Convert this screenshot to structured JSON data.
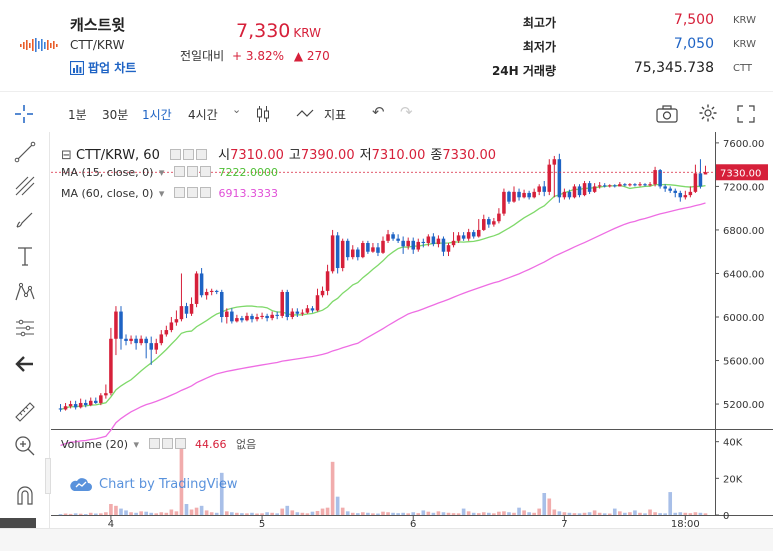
{
  "header": {
    "coin_name": "캐스트윗",
    "pair": "CTT/KRW",
    "popup_label": "팝업 차트",
    "price": "7,330",
    "price_unit": "KRW",
    "change_label": "전일대비",
    "change_pct": "+ 3.82%",
    "change_abs": "▲ 270",
    "stats": [
      {
        "label": "최고가",
        "value": "7,500",
        "unit": "KRW",
        "color": "#d6203a"
      },
      {
        "label": "최저가",
        "value": "7,050",
        "unit": "KRW",
        "color": "#1e63c4"
      },
      {
        "label": "24H 거래량",
        "value": "75,345.738",
        "unit": "CTT",
        "color": "#222222"
      }
    ]
  },
  "toolbar": {
    "intervals": [
      "1분",
      "30분",
      "1시간",
      "4시간"
    ],
    "active_interval": "1시간",
    "indicator_label": "지표"
  },
  "legend": {
    "symbol": "CTT/KRW, 60",
    "ohlc": [
      {
        "k": "시",
        "v": "7310.00"
      },
      {
        "k": "고",
        "v": "7390.00"
      },
      {
        "k": "저",
        "v": "7310.00"
      },
      {
        "k": "종",
        "v": "7330.00"
      }
    ],
    "ma15_label": "MA (15, close, 0)",
    "ma15_value": "7222.0000",
    "ma60_label": "MA (60, close, 0)",
    "ma60_value": "6913.3333",
    "volume_label": "Volume (20)",
    "volume_value": "44.66",
    "volume_extra": "없음"
  },
  "watermark": "Chart by TradingView",
  "chart_data": {
    "type": "candlestick",
    "y_ticks": [
      "7600.00",
      "7200.00",
      "6800.00",
      "6400.00",
      "6000.00",
      "5600.00",
      "5200.00"
    ],
    "y_tick_values": [
      7600,
      7200,
      6800,
      6400,
      6000,
      5600,
      5200
    ],
    "ylim": [
      4980,
      7700
    ],
    "last_price_label": "7330.00",
    "last_price": 7330,
    "x_ticks": [
      "4",
      "5",
      "6",
      "7",
      "18:00"
    ],
    "x_tick_index": [
      10,
      40,
      70,
      100,
      124
    ],
    "volume_ticks": [
      "40K",
      "20K",
      "0"
    ],
    "volume_tick_values": [
      40000,
      20000,
      0
    ],
    "volume_max": 42000,
    "colors": {
      "up": "#d6203a",
      "down": "#1e63c4",
      "ma15": "#7fd96a",
      "ma60": "#ee6de3",
      "vol": "#9fb8e6",
      "vol_up": "#f0a3a3"
    },
    "candles": [
      [
        5160,
        5150,
        5200,
        5130
      ],
      [
        5150,
        5180,
        5210,
        5140
      ],
      [
        5180,
        5200,
        5230,
        5160
      ],
      [
        5200,
        5170,
        5230,
        5150
      ],
      [
        5170,
        5210,
        5250,
        5160
      ],
      [
        5210,
        5190,
        5240,
        5170
      ],
      [
        5190,
        5230,
        5260,
        5180
      ],
      [
        5230,
        5210,
        5260,
        5200
      ],
      [
        5210,
        5280,
        5300,
        5190
      ],
      [
        5280,
        5300,
        5380,
        5250
      ],
      [
        5300,
        5800,
        5900,
        5280
      ],
      [
        5800,
        6050,
        6100,
        5650
      ],
      [
        6050,
        5800,
        6100,
        5700
      ],
      [
        5800,
        5780,
        5840,
        5740
      ],
      [
        5780,
        5800,
        5830,
        5750
      ],
      [
        5800,
        5760,
        5830,
        5700
      ],
      [
        5760,
        5800,
        5830,
        5740
      ],
      [
        5800,
        5760,
        5820,
        5620
      ],
      [
        5760,
        5700,
        5820,
        5560
      ],
      [
        5700,
        5760,
        5800,
        5660
      ],
      [
        5760,
        5840,
        5880,
        5740
      ],
      [
        5840,
        5880,
        5920,
        5820
      ],
      [
        5880,
        5950,
        6000,
        5860
      ],
      [
        5950,
        5980,
        6060,
        5920
      ],
      [
        5980,
        6100,
        6400,
        5960
      ],
      [
        6100,
        6030,
        6130,
        5990
      ],
      [
        6030,
        6120,
        6180,
        6010
      ],
      [
        6120,
        6400,
        6420,
        6090
      ],
      [
        6400,
        6200,
        6450,
        6180
      ],
      [
        6200,
        6230,
        6260,
        6160
      ],
      [
        6230,
        6240,
        6260,
        6200
      ],
      [
        6240,
        6230,
        6250,
        6210
      ],
      [
        6230,
        6000,
        6250,
        5950
      ],
      [
        6000,
        6050,
        6080,
        5940
      ],
      [
        6050,
        5960,
        6080,
        5940
      ],
      [
        5960,
        5990,
        6020,
        5950
      ],
      [
        5990,
        5970,
        6010,
        5950
      ],
      [
        5970,
        6010,
        6040,
        5960
      ],
      [
        6010,
        5980,
        6030,
        5950
      ],
      [
        5980,
        6000,
        6030,
        5960
      ],
      [
        6000,
        6010,
        6040,
        5980
      ],
      [
        6010,
        5990,
        6030,
        5960
      ],
      [
        5990,
        6020,
        6050,
        5970
      ],
      [
        6020,
        6010,
        6050,
        5980
      ],
      [
        6010,
        6230,
        6250,
        5990
      ],
      [
        6230,
        6000,
        6250,
        5970
      ],
      [
        6000,
        6050,
        6080,
        5980
      ],
      [
        6050,
        6030,
        6080,
        6000
      ],
      [
        6030,
        6040,
        6070,
        6010
      ],
      [
        6040,
        6080,
        6110,
        6030
      ],
      [
        6080,
        6060,
        6100,
        6040
      ],
      [
        6060,
        6200,
        6260,
        6050
      ],
      [
        6200,
        6240,
        6280,
        6180
      ],
      [
        6240,
        6420,
        6480,
        6200
      ],
      [
        6420,
        6750,
        6800,
        6400
      ],
      [
        6750,
        6450,
        6780,
        6400
      ],
      [
        6450,
        6700,
        6720,
        6420
      ],
      [
        6700,
        6550,
        6720,
        6520
      ],
      [
        6550,
        6620,
        6660,
        6530
      ],
      [
        6620,
        6550,
        6640,
        6520
      ],
      [
        6550,
        6680,
        6700,
        6540
      ],
      [
        6680,
        6600,
        6700,
        6580
      ],
      [
        6600,
        6640,
        6680,
        6590
      ],
      [
        6640,
        6590,
        6680,
        6560
      ],
      [
        6590,
        6700,
        6740,
        6580
      ],
      [
        6700,
        6760,
        6800,
        6680
      ],
      [
        6760,
        6720,
        6780,
        6700
      ],
      [
        6720,
        6700,
        6760,
        6680
      ],
      [
        6700,
        6650,
        6740,
        6580
      ],
      [
        6650,
        6700,
        6730,
        6620
      ],
      [
        6700,
        6620,
        6730,
        6580
      ],
      [
        6620,
        6690,
        6720,
        6600
      ],
      [
        6690,
        6680,
        6720,
        6640
      ],
      [
        6680,
        6740,
        6760,
        6650
      ],
      [
        6740,
        6670,
        6770,
        6650
      ],
      [
        6670,
        6720,
        6750,
        6640
      ],
      [
        6720,
        6600,
        6740,
        6560
      ],
      [
        6600,
        6660,
        6680,
        6560
      ],
      [
        6660,
        6700,
        6780,
        6640
      ],
      [
        6700,
        6750,
        6780,
        6680
      ],
      [
        6750,
        6720,
        6780,
        6700
      ],
      [
        6720,
        6780,
        6810,
        6700
      ],
      [
        6780,
        6740,
        6800,
        6720
      ],
      [
        6740,
        6800,
        6900,
        6730
      ],
      [
        6800,
        6900,
        6940,
        6790
      ],
      [
        6900,
        6850,
        6920,
        6820
      ],
      [
        6850,
        6880,
        6910,
        6830
      ],
      [
        6880,
        6950,
        7000,
        6860
      ],
      [
        6950,
        7150,
        7180,
        6930
      ],
      [
        7150,
        7060,
        7160,
        7040
      ],
      [
        7060,
        7150,
        7200,
        7050
      ],
      [
        7150,
        7100,
        7180,
        7070
      ],
      [
        7100,
        7140,
        7170,
        7090
      ],
      [
        7140,
        7100,
        7160,
        7080
      ],
      [
        7100,
        7150,
        7180,
        7090
      ],
      [
        7150,
        7200,
        7220,
        7120
      ],
      [
        7200,
        7150,
        7250,
        7110
      ],
      [
        7150,
        7400,
        7450,
        7120
      ],
      [
        7400,
        7450,
        7480,
        7100
      ],
      [
        7450,
        7100,
        7500,
        7050
      ],
      [
        7100,
        7150,
        7180,
        7080
      ],
      [
        7150,
        7100,
        7170,
        7080
      ],
      [
        7100,
        7200,
        7220,
        7090
      ],
      [
        7200,
        7120,
        7220,
        7100
      ],
      [
        7120,
        7230,
        7250,
        7110
      ],
      [
        7230,
        7150,
        7250,
        7130
      ],
      [
        7150,
        7200,
        7230,
        7140
      ],
      [
        7200,
        7210,
        7240,
        7180
      ],
      [
        7210,
        7200,
        7230,
        7190
      ],
      [
        7200,
        7210,
        7220,
        7190
      ],
      [
        7210,
        7200,
        7220,
        7190
      ],
      [
        7200,
        7220,
        7240,
        7200
      ],
      [
        7220,
        7210,
        7230,
        7200
      ],
      [
        7210,
        7220,
        7230,
        7200
      ],
      [
        7220,
        7210,
        7230,
        7200
      ],
      [
        7210,
        7220,
        7240,
        7200
      ],
      [
        7220,
        7210,
        7230,
        7200
      ],
      [
        7210,
        7220,
        7240,
        7200
      ],
      [
        7220,
        7350,
        7380,
        7200
      ],
      [
        7350,
        7200,
        7360,
        7180
      ],
      [
        7200,
        7180,
        7220,
        7150
      ],
      [
        7180,
        7160,
        7200,
        7140
      ],
      [
        7160,
        7140,
        7180,
        7100
      ],
      [
        7140,
        7100,
        7160,
        7060
      ],
      [
        7100,
        7120,
        7160,
        7080
      ],
      [
        7120,
        7150,
        7200,
        7100
      ],
      [
        7150,
        7320,
        7400,
        7140
      ],
      [
        7320,
        7200,
        7450,
        7180
      ],
      [
        7310,
        7330,
        7390,
        7310
      ]
    ],
    "volume": [
      500,
      800,
      600,
      900,
      700,
      500,
      1200,
      800,
      900,
      1500,
      6000,
      5000,
      3500,
      2500,
      1500,
      1200,
      2000,
      1800,
      1200,
      900,
      1500,
      1200,
      3000,
      2000,
      42000,
      6000,
      3000,
      4000,
      5000,
      2500,
      1500,
      1200,
      23000,
      2000,
      1500,
      1200,
      1000,
      900,
      1200,
      800,
      900,
      1500,
      1200,
      900,
      3500,
      5000,
      2500,
      1500,
      1200,
      900,
      1800,
      2200,
      3500,
      4000,
      29000,
      10000,
      4000,
      2000,
      1200,
      1000,
      1500,
      1200,
      900,
      800,
      1800,
      1500,
      1200,
      1000,
      1200,
      900,
      1500,
      1000,
      2500,
      1800,
      1200,
      2000,
      1500,
      1200,
      1000,
      900,
      3500,
      2000,
      1200,
      1000,
      1500,
      1200,
      900,
      1800,
      2000,
      1500,
      1200,
      4000,
      2500,
      1500,
      1200,
      3500,
      12000,
      9000,
      3000,
      2000,
      1500,
      1200,
      1000,
      900,
      1200,
      1500,
      2500,
      1200,
      900,
      800,
      3500,
      2000,
      1200,
      1500,
      2500,
      1200,
      900,
      3000,
      1500,
      1000,
      900,
      12500,
      1200,
      1500,
      1200,
      1000,
      1500,
      1200,
      900
    ]
  }
}
